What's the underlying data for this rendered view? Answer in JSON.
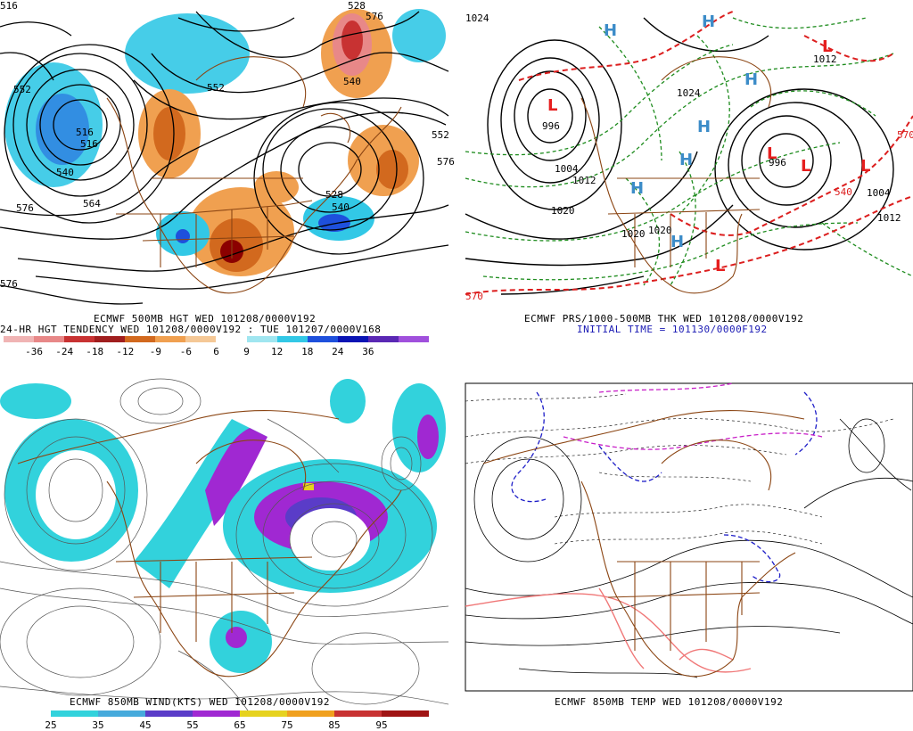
{
  "panels": [
    {
      "id": "hgt500",
      "caption_lines": [
        "ECMWF 500MB HGT WED 101208/0000V192",
        "24-HR HGT TENDENCY WED 101208/0000V192 : TUE 101207/0000V168"
      ],
      "colorbar": {
        "labels": [
          "-36",
          "-24",
          "-18",
          "-12",
          "-9",
          "-6",
          "6",
          "9",
          "12",
          "18",
          "24",
          "36"
        ],
        "colors": [
          "#f0b4b4",
          "#e88888",
          "#c83232",
          "#a01e1e",
          "#d2691e",
          "#f0a050",
          "#f5c896",
          "#ffffff",
          "#a0e6f0",
          "#32c8e6",
          "#1e50dc",
          "#0a14b4",
          "#5a28b4",
          "#a050dc"
        ]
      },
      "contour_labels": [
        "552",
        "516",
        "516",
        "540",
        "576",
        "564",
        "552",
        "540",
        "528",
        "552",
        "528",
        "540",
        "576",
        "576",
        "516",
        "576"
      ]
    },
    {
      "id": "prs1000",
      "caption_lines": [
        "ECMWF PRS/1000-500MB THK WED 101208/0000V192",
        "INITIAL TIME = 101130/0000F192"
      ],
      "centers_L": [
        "L",
        "L",
        "L",
        "L",
        "L",
        "L"
      ],
      "centers_H": [
        "H",
        "H",
        "H",
        "H",
        "H",
        "H",
        "H"
      ],
      "isobar_labels": [
        "1024",
        "996",
        "1004",
        "1012",
        "1020",
        "1020",
        "1020",
        "1004",
        "1012",
        "996",
        "1024",
        "1012"
      ],
      "thickness_labels": [
        "570",
        "540",
        "570"
      ]
    },
    {
      "id": "wind850",
      "caption_lines": [
        "ECMWF 850MB WIND(KTS) WED 101208/0000V192"
      ],
      "colorbar": {
        "labels": [
          "25",
          "35",
          "45",
          "55",
          "65",
          "75",
          "85",
          "95"
        ],
        "colors": [
          "#ffffff",
          "#32d2dc",
          "#46aadc",
          "#5a3cc8",
          "#a028d2",
          "#e6d21e",
          "#f0a01e",
          "#c83232",
          "#a01414"
        ]
      }
    },
    {
      "id": "temp850",
      "caption_lines": [
        "ECMWF 850MB TEMP WED 101208/0000V192"
      ]
    }
  ],
  "colors": {
    "land_outline": "#8b4513",
    "contour": "#000000",
    "isobar_green": "#1e8c1e",
    "thickness_red": "#dc1e1e",
    "high_blue": "#3c8cc8",
    "low_red": "#e61e1e",
    "cold_blue": "#1e1ec8",
    "cold_magenta": "#c81ec8",
    "warm_pink": "#f07878"
  }
}
